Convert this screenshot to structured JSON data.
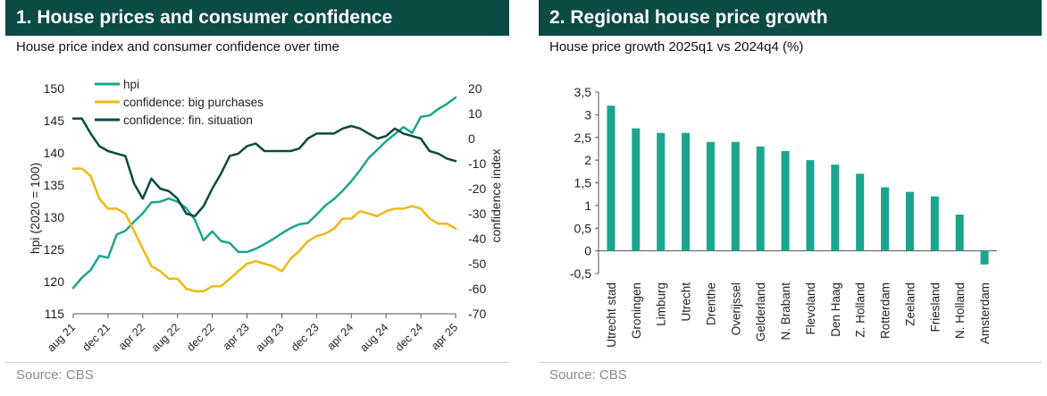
{
  "left_panel": {
    "title": "1. House prices and consumer confidence",
    "subtitle": "House price index and consumer confidence over time",
    "source": "Source: CBS"
  },
  "right_panel": {
    "title": "2. Regional house price growth",
    "subtitle": "House price growth 2025q1 vs 2024q4 (%)",
    "source": "Source: CBS"
  },
  "colors": {
    "header_bg": "#0c4a44",
    "hpi": "#1aa68c",
    "big_purchases": "#f0b814",
    "fin_situation": "#0c4a44",
    "bar": "#1aa68c"
  },
  "chart_data": [
    {
      "type": "line",
      "xlabel": "",
      "ylabel": "hpi (2020 = 100)",
      "y2label": "confidence index",
      "x_ticks": [
        "aug 21",
        "dec 21",
        "apr 22",
        "aug 22",
        "dec 22",
        "apr 23",
        "aug 23",
        "dec 23",
        "apr 24",
        "aug 24",
        "dec 24",
        "apr 25"
      ],
      "ylim": [
        115,
        150
      ],
      "y_ticks": [
        "115",
        "120",
        "125",
        "130",
        "135",
        "140",
        "145",
        "150"
      ],
      "y2lim": [
        -70,
        20
      ],
      "y2_ticks": [
        "-70",
        "-60",
        "-50",
        "-40",
        "-30",
        "-20",
        "-10",
        "0",
        "10",
        "20"
      ],
      "legend_position": "top-left",
      "grid": false,
      "series": [
        {
          "name": "hpi",
          "axis": "left",
          "values": [
            119.0,
            120.6,
            121.8,
            124.0,
            123.7,
            127.3,
            127.9,
            129.3,
            130.6,
            132.3,
            132.4,
            132.9,
            132.4,
            131.4,
            129.6,
            126.4,
            127.8,
            126.3,
            126.0,
            124.6,
            124.6,
            125.1,
            125.8,
            126.6,
            127.5,
            128.3,
            128.9,
            129.1,
            130.4,
            131.8,
            132.8,
            134.1,
            135.6,
            137.3,
            139.2,
            140.5,
            141.8,
            142.9,
            144.0,
            143.1,
            145.6,
            145.8,
            146.8,
            147.6,
            148.6
          ]
        },
        {
          "name": "confidence: big purchases",
          "axis": "right",
          "values": [
            -12,
            -12,
            -15,
            -24,
            -28,
            -28,
            -30,
            -37,
            -44,
            -51,
            -53,
            -56,
            -56,
            -60,
            -61,
            -61,
            -59,
            -59,
            -56,
            -53,
            -50,
            -49,
            -50,
            -51,
            -53,
            -48,
            -45,
            -41,
            -39,
            -38,
            -36,
            -32,
            -32,
            -29,
            -30,
            -31,
            -29,
            -28,
            -28,
            -27,
            -28,
            -32,
            -34,
            -34,
            -36
          ]
        },
        {
          "name": "confidence: fin. situation",
          "axis": "right",
          "values": [
            8,
            8,
            2,
            -3,
            -5,
            -6,
            -7,
            -18,
            -24,
            -16,
            -20,
            -21,
            -24,
            -30,
            -31,
            -27,
            -20,
            -14,
            -7,
            -6,
            -3,
            -2,
            -5,
            -5,
            -5,
            -5,
            -4,
            0,
            2,
            2,
            2,
            4,
            5,
            4,
            2,
            0,
            1,
            4,
            2,
            1,
            0,
            -5,
            -6,
            -8,
            -9
          ]
        }
      ]
    },
    {
      "type": "bar",
      "categories": [
        "Utrecht stad",
        "Groningen",
        "Limburg",
        "Utrecht",
        "Drenthe",
        "Overijssel",
        "Gelderland",
        "N. Brabant",
        "Flevoland",
        "Den Haag",
        "Z. Holland",
        "Rotterdam",
        "Zeeland",
        "Friesland",
        "N. Holland",
        "Amsterdam"
      ],
      "values": [
        3.2,
        2.7,
        2.6,
        2.6,
        2.4,
        2.4,
        2.3,
        2.2,
        2.0,
        1.9,
        1.7,
        1.4,
        1.3,
        1.2,
        0.8,
        -0.3
      ],
      "ylim": [
        -0.5,
        3.5
      ],
      "y_ticks": [
        "-0,5",
        "0",
        "0,5",
        "1",
        "1,5",
        "2",
        "2,5",
        "3",
        "3,5"
      ],
      "grid": false
    }
  ]
}
